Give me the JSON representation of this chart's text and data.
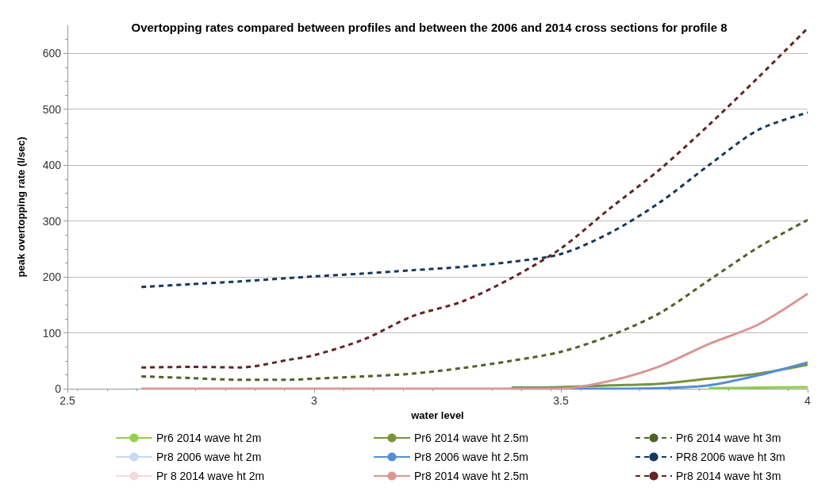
{
  "chart_data": {
    "type": "line",
    "title": "Overtopping rates compared between profiles and between the 2006 and 2014 cross sections for profile 8",
    "xlabel": "water level",
    "ylabel": "peak overtopping rate (l/sec)",
    "x": [
      2.65,
      2.75,
      2.85,
      2.95,
      3.0,
      3.1,
      3.2,
      3.3,
      3.4,
      3.5,
      3.6,
      3.7,
      3.8,
      3.9,
      4.0
    ],
    "series": [
      {
        "name": "Pr6 2014 wave ht 2m",
        "color": "#92d050",
        "line_style": "solid",
        "values": [
          null,
          null,
          null,
          null,
          null,
          null,
          null,
          null,
          null,
          null,
          null,
          null,
          1,
          2,
          3
        ]
      },
      {
        "name": "Pr6 2014 wave ht 2.5m",
        "color": "#77933c",
        "line_style": "solid",
        "values": [
          null,
          null,
          null,
          null,
          null,
          null,
          null,
          null,
          2,
          3,
          6,
          9,
          18,
          27,
          43
        ]
      },
      {
        "name": "Pr6 2014 wave ht 3m",
        "color": "#4f6228",
        "line_style": "dashed",
        "values": [
          22,
          19,
          16,
          16,
          18,
          22,
          27,
          37,
          50,
          66,
          95,
          135,
          194,
          253,
          302
        ]
      },
      {
        "name": "Pr8 2006 wave ht 2m",
        "color": "#c6d9f1",
        "line_style": "solid",
        "values": [
          null,
          null,
          null,
          null,
          null,
          null,
          null,
          null,
          null,
          null,
          null,
          null,
          null,
          null,
          null
        ]
      },
      {
        "name": "Pr8 2006 wave ht 2.5m",
        "color": "#558ed5",
        "line_style": "solid",
        "values": [
          null,
          null,
          null,
          null,
          null,
          null,
          null,
          null,
          0,
          0,
          0,
          1,
          6,
          24,
          47
        ]
      },
      {
        "name": "PR8 2006 wave ht 3m",
        "color": "#17375e",
        "line_style": "dashed",
        "values": [
          182,
          187,
          192,
          198,
          201,
          206,
          212,
          218,
          227,
          241,
          279,
          333,
          400,
          463,
          494
        ]
      },
      {
        "name": "Pr 8 2014 wave ht 2m",
        "color": "#f2dcdb",
        "line_style": "solid",
        "values": [
          null,
          null,
          null,
          null,
          null,
          null,
          null,
          null,
          null,
          null,
          null,
          null,
          null,
          null,
          null
        ]
      },
      {
        "name": "Pr8 2014 wave ht 2.5m",
        "color": "#d99694",
        "line_style": "solid",
        "values": [
          0,
          0,
          0,
          0,
          0,
          0,
          0,
          0,
          0,
          0,
          14,
          40,
          80,
          115,
          170
        ]
      },
      {
        "name": "Pr8 2014 wave ht 3m",
        "color": "#632523",
        "line_style": "dashed",
        "values": [
          38,
          39,
          38,
          52,
          60,
          88,
          130,
          156,
          198,
          251,
          323,
          392,
          472,
          557,
          645
        ]
      }
    ],
    "xlim": [
      2.5,
      4
    ],
    "xticks": [
      2.5,
      3,
      3.5,
      4
    ],
    "ylim": [
      0,
      650
    ],
    "yticks": [
      0,
      100,
      200,
      300,
      400,
      500,
      600
    ],
    "grid": "y",
    "legend": "bottom",
    "marker": "none"
  }
}
